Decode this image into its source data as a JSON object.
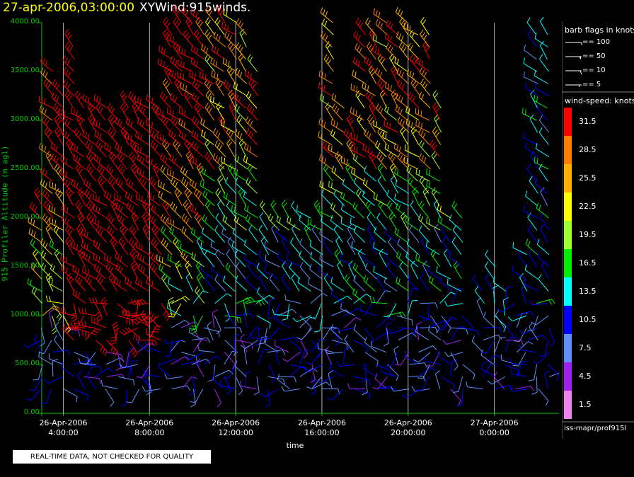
{
  "title": {
    "date": "27-apr-2006,03:00:00",
    "name": "XYWind:915winds."
  },
  "chart_data": {
    "type": "wind-barb time-height",
    "ylabel": "915 Profiler Altitude (m agl)",
    "xlabel": "time",
    "ylim": [
      0,
      4000
    ],
    "yticks": [
      "0.00",
      "500.00",
      "1000.00",
      "1500.00",
      "2000.00",
      "2500.00",
      "3000.00",
      "3500.00",
      "4000.00"
    ],
    "xticks": [
      {
        "date": "26-Apr-2006",
        "time": "4:00:00"
      },
      {
        "date": "26-Apr-2006",
        "time": "8:00:00"
      },
      {
        "date": "26-Apr-2006",
        "time": "12:00:00"
      },
      {
        "date": "26-Apr-2006",
        "time": "16:00:00"
      },
      {
        "date": "26-Apr-2006",
        "time": "20:00:00"
      },
      {
        "date": "27-Apr-2006",
        "time": "0:00:00"
      }
    ],
    "xlim_hours": [
      3.0,
      27.0
    ],
    "xtick_hours": [
      4,
      8,
      12,
      16,
      20,
      24
    ],
    "grid": "vertical lines at time ticks",
    "color_scale": [
      {
        "speed": "31.5",
        "color": "#ff0000"
      },
      {
        "speed": "28.5",
        "color": "#ff8000"
      },
      {
        "speed": "25.5",
        "color": "#ffb000"
      },
      {
        "speed": "22.5",
        "color": "#ffff00"
      },
      {
        "speed": "19.5",
        "color": "#a0ff30"
      },
      {
        "speed": "16.5",
        "color": "#00ee00"
      },
      {
        "speed": "13.5",
        "color": "#00ffff"
      },
      {
        "speed": "10.5",
        "color": "#0000ff"
      },
      {
        "speed": "7.5",
        "color": "#6090ff"
      },
      {
        "speed": "4.5",
        "color": "#a020f0"
      },
      {
        "speed": "1.5",
        "color": "#ee82ee"
      }
    ],
    "profile_times_hours": [
      3.0,
      3.5,
      4.0,
      4.5,
      5.0,
      5.5,
      6.0,
      6.5,
      7.0,
      7.5,
      8.0,
      8.5,
      9.0,
      9.5,
      10.0,
      10.5,
      11.0,
      11.5,
      12.0,
      12.5,
      13.0,
      13.5,
      14.0,
      14.5,
      15.0,
      15.5,
      16.0,
      16.5,
      17.0,
      17.5,
      18.0,
      18.5,
      19.0,
      19.5,
      20.0,
      20.5,
      21.0,
      21.5,
      22.0,
      22.5,
      23.5,
      24.0,
      24.5,
      25.0,
      25.5,
      26.0,
      26.5
    ],
    "profile_tops_m": [
      2200,
      3600,
      3300,
      3800,
      3200,
      3200,
      3200,
      3100,
      3150,
      3200,
      3150,
      3200,
      3900,
      4000,
      4000,
      4000,
      4000,
      4000,
      4000,
      3950,
      3600,
      2100,
      2100,
      2050,
      2000,
      2050,
      2050,
      4000,
      3200,
      2900,
      3950,
      3950,
      4000,
      3900,
      4000,
      3900,
      3950,
      3150,
      2100,
      2100,
      1300,
      1500,
      1300,
      1200,
      1700,
      3950,
      3950
    ]
  },
  "legend": {
    "flags_title": "barb flags in knots",
    "flags": [
      "== 100",
      "== 50",
      "== 10",
      "== 5"
    ],
    "speed_title": "wind-speed: knots",
    "source": "iss-mapr/prof915l"
  },
  "disclaimer": "REAL-TIME DATA, NOT CHECKED FOR QUALITY"
}
